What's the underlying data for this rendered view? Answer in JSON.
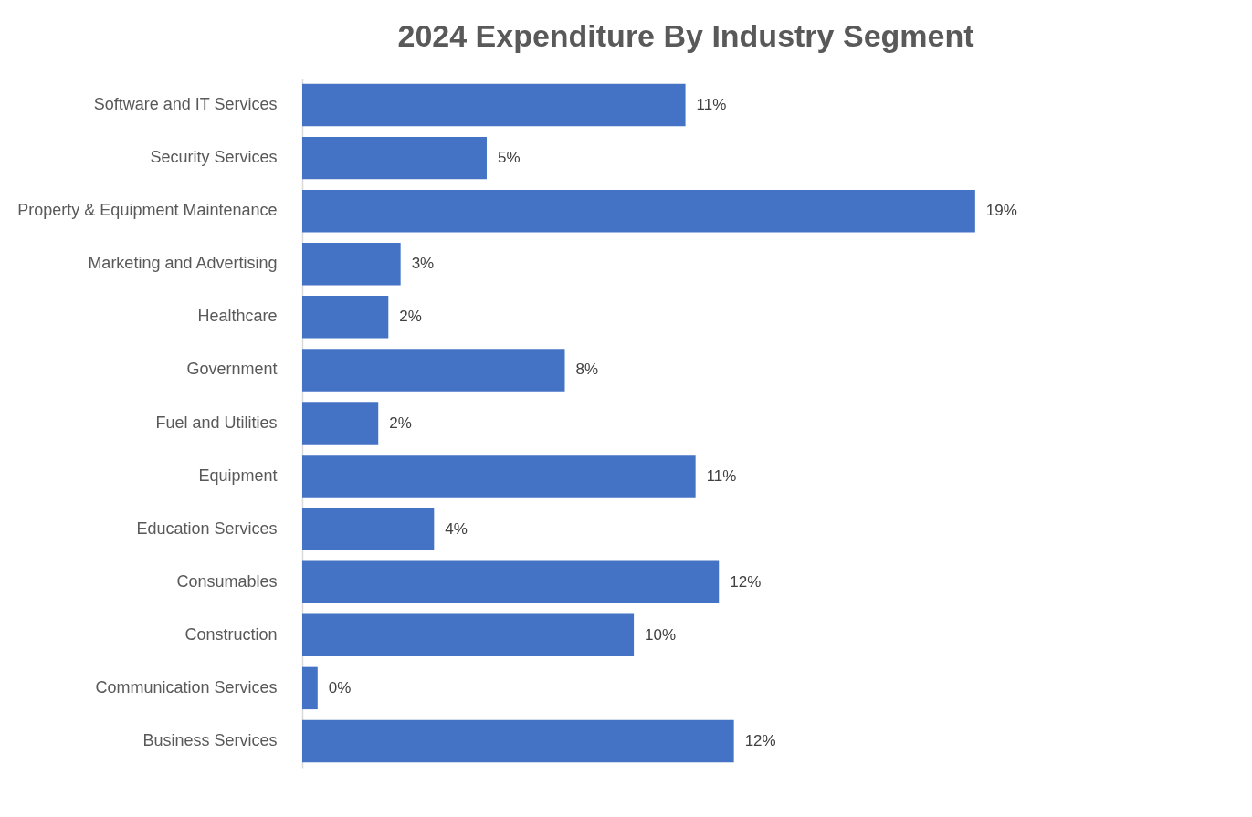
{
  "chart_data": {
    "type": "bar",
    "orientation": "horizontal",
    "title": "2024 Expenditure By Industry Segment",
    "categories": [
      "Software and IT Services",
      "Security Services",
      "Property & Equipment Maintenance",
      "Marketing and Advertising",
      "Healthcare",
      "Government",
      "Fuel and Utilities",
      "Equipment",
      "Education Services",
      "Consumables",
      "Construction",
      "Communication Services",
      "Business Services"
    ],
    "values": [
      10.99,
      5.29,
      19.3,
      2.82,
      2.47,
      7.53,
      2.18,
      11.28,
      3.78,
      11.95,
      9.51,
      0.44,
      12.38
    ],
    "value_labels": [
      "11%",
      "5%",
      "19%",
      "3%",
      "2%",
      "8%",
      "2%",
      "11%",
      "4%",
      "12%",
      "10%",
      "0%",
      "12%"
    ],
    "color": "#4472c4"
  }
}
